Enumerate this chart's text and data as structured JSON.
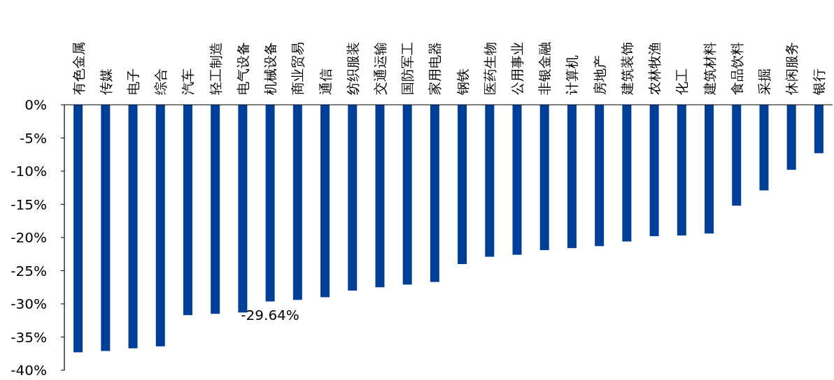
{
  "chart_data": {
    "type": "bar",
    "categories": [
      "有色金属",
      "传媒",
      "电子",
      "综合",
      "汽车",
      "轻工制造",
      "电气设备",
      "机械设备",
      "商业贸易",
      "通信",
      "纺织服装",
      "交通运输",
      "国防军工",
      "家用电器",
      "钢铁",
      "医药生物",
      "公用事业",
      "非银金融",
      "计算机",
      "房地产",
      "建筑装饰",
      "农林牧渔",
      "化工",
      "建筑材料",
      "食品饮料",
      "采掘",
      "休闲服务",
      "银行"
    ],
    "values": [
      -37.3,
      -37.1,
      -36.7,
      -36.4,
      -31.7,
      -31.5,
      -31.3,
      -29.64,
      -29.4,
      -29.0,
      -28.0,
      -27.5,
      -27.1,
      -26.7,
      -24.0,
      -22.9,
      -22.6,
      -21.9,
      -21.6,
      -21.3,
      -20.6,
      -19.8,
      -19.7,
      -19.4,
      -15.2,
      -12.9,
      -9.8,
      -7.3
    ],
    "value_labels": [
      null,
      null,
      null,
      null,
      null,
      null,
      null,
      "-29.64%",
      null,
      null,
      null,
      null,
      null,
      null,
      null,
      null,
      null,
      null,
      null,
      null,
      null,
      null,
      null,
      null,
      null,
      null,
      null,
      null
    ],
    "color": "#003f98",
    "ylim": [
      -40,
      0
    ],
    "yticks": [
      {
        "value": 0,
        "label": "0%"
      },
      {
        "value": -5,
        "label": "-5%"
      },
      {
        "value": -10,
        "label": "-10%"
      },
      {
        "value": -15,
        "label": "-15%"
      },
      {
        "value": -20,
        "label": "-20%"
      },
      {
        "value": -25,
        "label": "-25%"
      },
      {
        "value": -30,
        "label": "-30%"
      },
      {
        "value": -35,
        "label": "-35%"
      },
      {
        "value": -40,
        "label": "-40%"
      }
    ],
    "grid": false
  }
}
